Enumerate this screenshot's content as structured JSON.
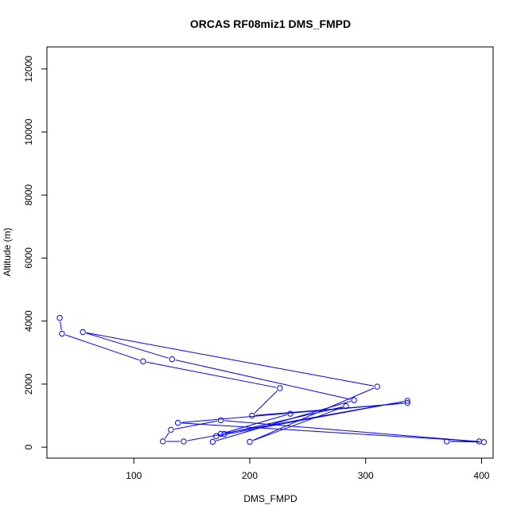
{
  "chart_data": {
    "type": "line",
    "title": "ORCAS RF08miz1 DMS_FMPD",
    "xlabel": "DMS_FMPD",
    "ylabel": "Altitude (m)",
    "xlim": [
      25,
      410
    ],
    "ylim": [
      -350,
      12700
    ],
    "x_ticks": [
      100,
      200,
      300,
      400
    ],
    "x_tick_labels": [
      "100",
      "200",
      "300",
      "400"
    ],
    "y_ticks": [
      0,
      2000,
      4000,
      6000,
      8000,
      10000,
      12000
    ],
    "y_tick_labels": [
      "0",
      "2000",
      "4000",
      "6000",
      "8000",
      "10000",
      "12000"
    ],
    "grid": false,
    "series": [
      {
        "color": "#0000ff",
        "markers": "open-circle",
        "x": [
          36,
          38,
          108,
          226,
          202,
          336,
          138,
          398,
          370,
          402,
          175,
          132,
          125,
          143,
          178,
          283,
          200,
          310,
          56,
          133,
          290,
          168,
          171,
          336,
          175,
          235
        ],
        "y": [
          4100,
          3600,
          2720,
          1870,
          1000,
          1400,
          770,
          180,
          180,
          160,
          850,
          550,
          180,
          180,
          420,
          1300,
          170,
          1920,
          3650,
          2790,
          1490,
          170,
          350,
          1470,
          420,
          1060
        ]
      }
    ]
  }
}
